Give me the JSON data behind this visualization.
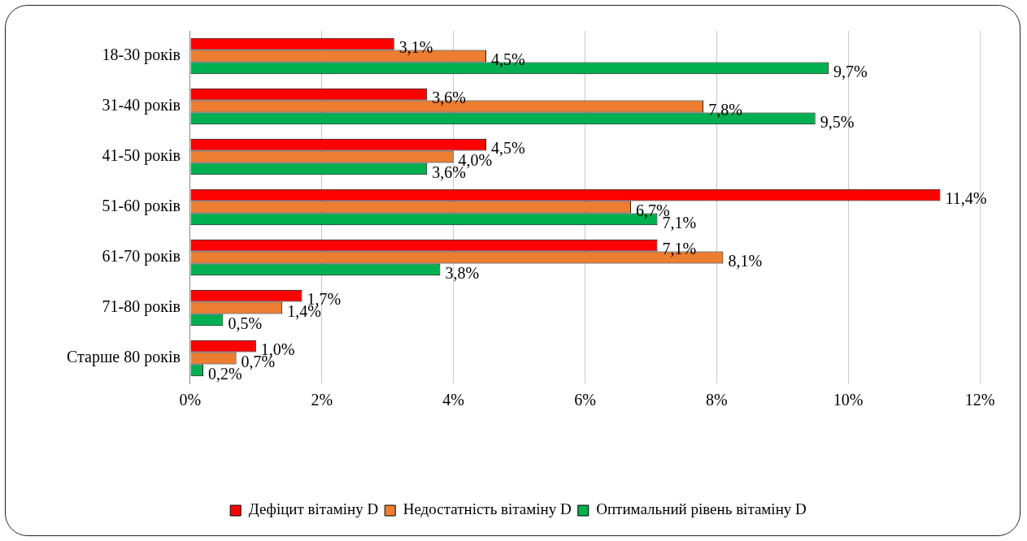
{
  "chart_data": {
    "type": "bar",
    "orientation": "horizontal",
    "categories": [
      "18-30 років",
      "31-40 років",
      "41-50 років",
      "51-60 років",
      "61-70 років",
      "71-80 років",
      "Старше 80 років"
    ],
    "series": [
      {
        "name": "Дефіцит вітаміну D",
        "color": "#ff0000",
        "values": [
          3.1,
          3.6,
          4.5,
          11.4,
          7.1,
          1.7,
          1.0
        ],
        "value_labels": [
          "3,1%",
          "3,6%",
          "4,5%",
          "11,4%",
          "7,1%",
          "1,7%",
          "1,0%"
        ]
      },
      {
        "name": "Недостатність вітаміну D",
        "color": "#ed7d31",
        "values": [
          4.5,
          7.8,
          4.0,
          6.7,
          8.1,
          1.4,
          0.7
        ],
        "value_labels": [
          "4,5%",
          "7,8%",
          "4,0%",
          "6,7%",
          "8,1%",
          "1,4%",
          "0,7%"
        ]
      },
      {
        "name": "Оптимальний рівень вітаміну D",
        "color": "#00b050",
        "values": [
          9.7,
          9.5,
          3.6,
          7.1,
          3.8,
          0.5,
          0.2
        ],
        "value_labels": [
          "9,7%",
          "9,5%",
          "3,6%",
          "7,1%",
          "3,8%",
          "0,5%",
          "0,2%"
        ]
      }
    ],
    "xlim": [
      0,
      12
    ],
    "xticks": [
      {
        "value": 0,
        "label": "0%"
      },
      {
        "value": 2,
        "label": "2%"
      },
      {
        "value": 4,
        "label": "4%"
      },
      {
        "value": 6,
        "label": "6%"
      },
      {
        "value": 8,
        "label": "8%"
      },
      {
        "value": 10,
        "label": "10%"
      },
      {
        "value": 12,
        "label": "12%"
      }
    ],
    "grid": "x",
    "legend": "bottom"
  }
}
